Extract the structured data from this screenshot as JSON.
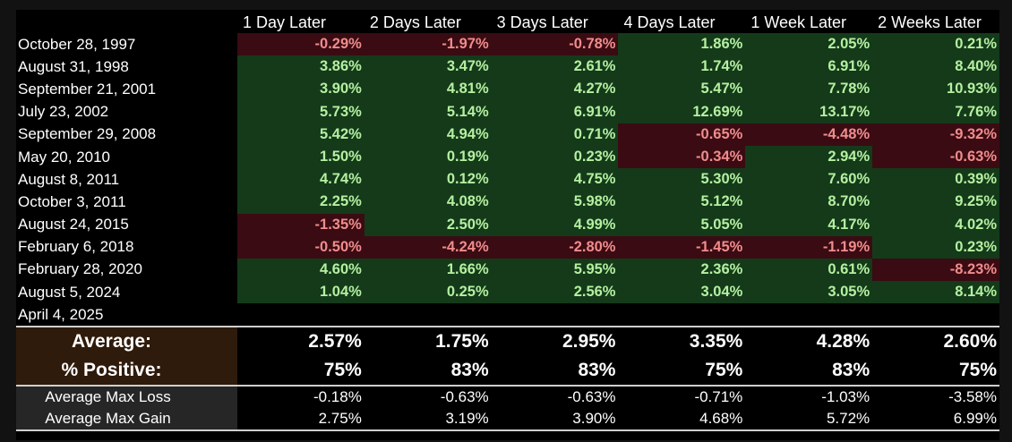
{
  "headers": [
    "",
    "1 Day Later",
    "2 Days Later",
    "3 Days Later",
    "4 Days Later",
    "1 Week Later",
    "2 Weeks Later"
  ],
  "rows": [
    {
      "date": "October 28, 1997",
      "values": [
        "-0.29%",
        "-1.97%",
        "-0.78%",
        "1.86%",
        "2.05%",
        "0.21%"
      ]
    },
    {
      "date": "August 31, 1998",
      "values": [
        "3.86%",
        "3.47%",
        "2.61%",
        "1.74%",
        "6.91%",
        "8.40%"
      ]
    },
    {
      "date": "September 21, 2001",
      "values": [
        "3.90%",
        "4.81%",
        "4.27%",
        "5.47%",
        "7.78%",
        "10.93%"
      ]
    },
    {
      "date": "July 23, 2002",
      "values": [
        "5.73%",
        "5.14%",
        "6.91%",
        "12.69%",
        "13.17%",
        "7.76%"
      ]
    },
    {
      "date": "September 29, 2008",
      "values": [
        "5.42%",
        "4.94%",
        "0.71%",
        "-0.65%",
        "-4.48%",
        "-9.32%"
      ]
    },
    {
      "date": "May 20, 2010",
      "values": [
        "1.50%",
        "0.19%",
        "0.23%",
        "-0.34%",
        "2.94%",
        "-0.63%"
      ]
    },
    {
      "date": "August 8, 2011",
      "values": [
        "4.74%",
        "0.12%",
        "4.75%",
        "5.30%",
        "7.60%",
        "0.39%"
      ]
    },
    {
      "date": "October 3, 2011",
      "values": [
        "2.25%",
        "4.08%",
        "5.98%",
        "5.12%",
        "8.70%",
        "9.25%"
      ]
    },
    {
      "date": "August 24, 2015",
      "values": [
        "-1.35%",
        "2.50%",
        "4.99%",
        "5.05%",
        "4.17%",
        "4.02%"
      ]
    },
    {
      "date": "February 6, 2018",
      "values": [
        "-0.50%",
        "-4.24%",
        "-2.80%",
        "-1.45%",
        "-1.19%",
        "0.23%"
      ]
    },
    {
      "date": "February 28, 2020",
      "values": [
        "4.60%",
        "1.66%",
        "5.95%",
        "2.36%",
        "0.61%",
        "-8.23%"
      ]
    },
    {
      "date": "August 5, 2024",
      "values": [
        "1.04%",
        "0.25%",
        "2.56%",
        "3.04%",
        "3.05%",
        "8.14%"
      ]
    },
    {
      "date": "April 4, 2025",
      "values": [
        "",
        "",
        "",
        "",
        "",
        ""
      ]
    }
  ],
  "summary": [
    {
      "label": "Average:",
      "values": [
        "2.57%",
        "1.75%",
        "2.95%",
        "3.35%",
        "4.28%",
        "2.60%"
      ]
    },
    {
      "label": "% Positive:",
      "values": [
        "75%",
        "83%",
        "83%",
        "75%",
        "83%",
        "75%"
      ]
    }
  ],
  "stats": [
    {
      "label": "Average Max Loss",
      "values": [
        "-0.18%",
        "-0.63%",
        "-0.63%",
        "-0.71%",
        "-1.03%",
        "-3.58%"
      ]
    },
    {
      "label": "Average Max Gain",
      "values": [
        "2.75%",
        "3.19%",
        "3.90%",
        "4.68%",
        "5.72%",
        "6.99%"
      ]
    }
  ],
  "colors": {
    "positive_bg": "#143a1a",
    "positive_text": "#b5f0a0",
    "negative_bg": "#3a0b12",
    "negative_text": "#f08c8c",
    "summary_label_bg": "#2f1b0b",
    "stats_label_bg": "#262626"
  }
}
